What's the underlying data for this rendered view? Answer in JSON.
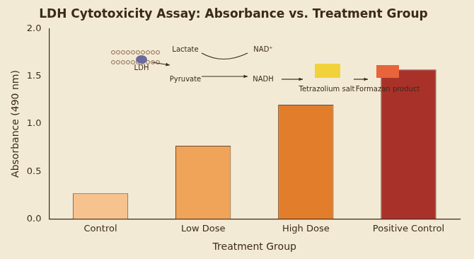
{
  "chart_data": {
    "type": "bar",
    "title": "LDH Cytotoxicity Assay: Absorbance vs. Treatment Group",
    "x_label": "Treatment Group",
    "y_label": "Absorbance (490 nm)",
    "categories": [
      "Control",
      "Low Dose",
      "High Dose",
      "Positive Control"
    ],
    "values": [
      0.27,
      0.77,
      1.2,
      1.57
    ],
    "colors": [
      "#f6c28e",
      "#f0a45a",
      "#e27d2c",
      "#a8322a"
    ],
    "ylim": [
      0,
      2
    ],
    "yticks": [
      {
        "value": 0,
        "label": "0.0"
      },
      0.5,
      {
        "value": 1,
        "label": "1.0"
      },
      1.5,
      {
        "value": 2,
        "label": "2.0"
      }
    ],
    "grid": false,
    "annotations": [
      "LDH",
      "Lactate",
      "Pyruvate",
      "NAD⁺",
      "NADH",
      "Tetrazolium salt",
      "Formazan product"
    ]
  }
}
